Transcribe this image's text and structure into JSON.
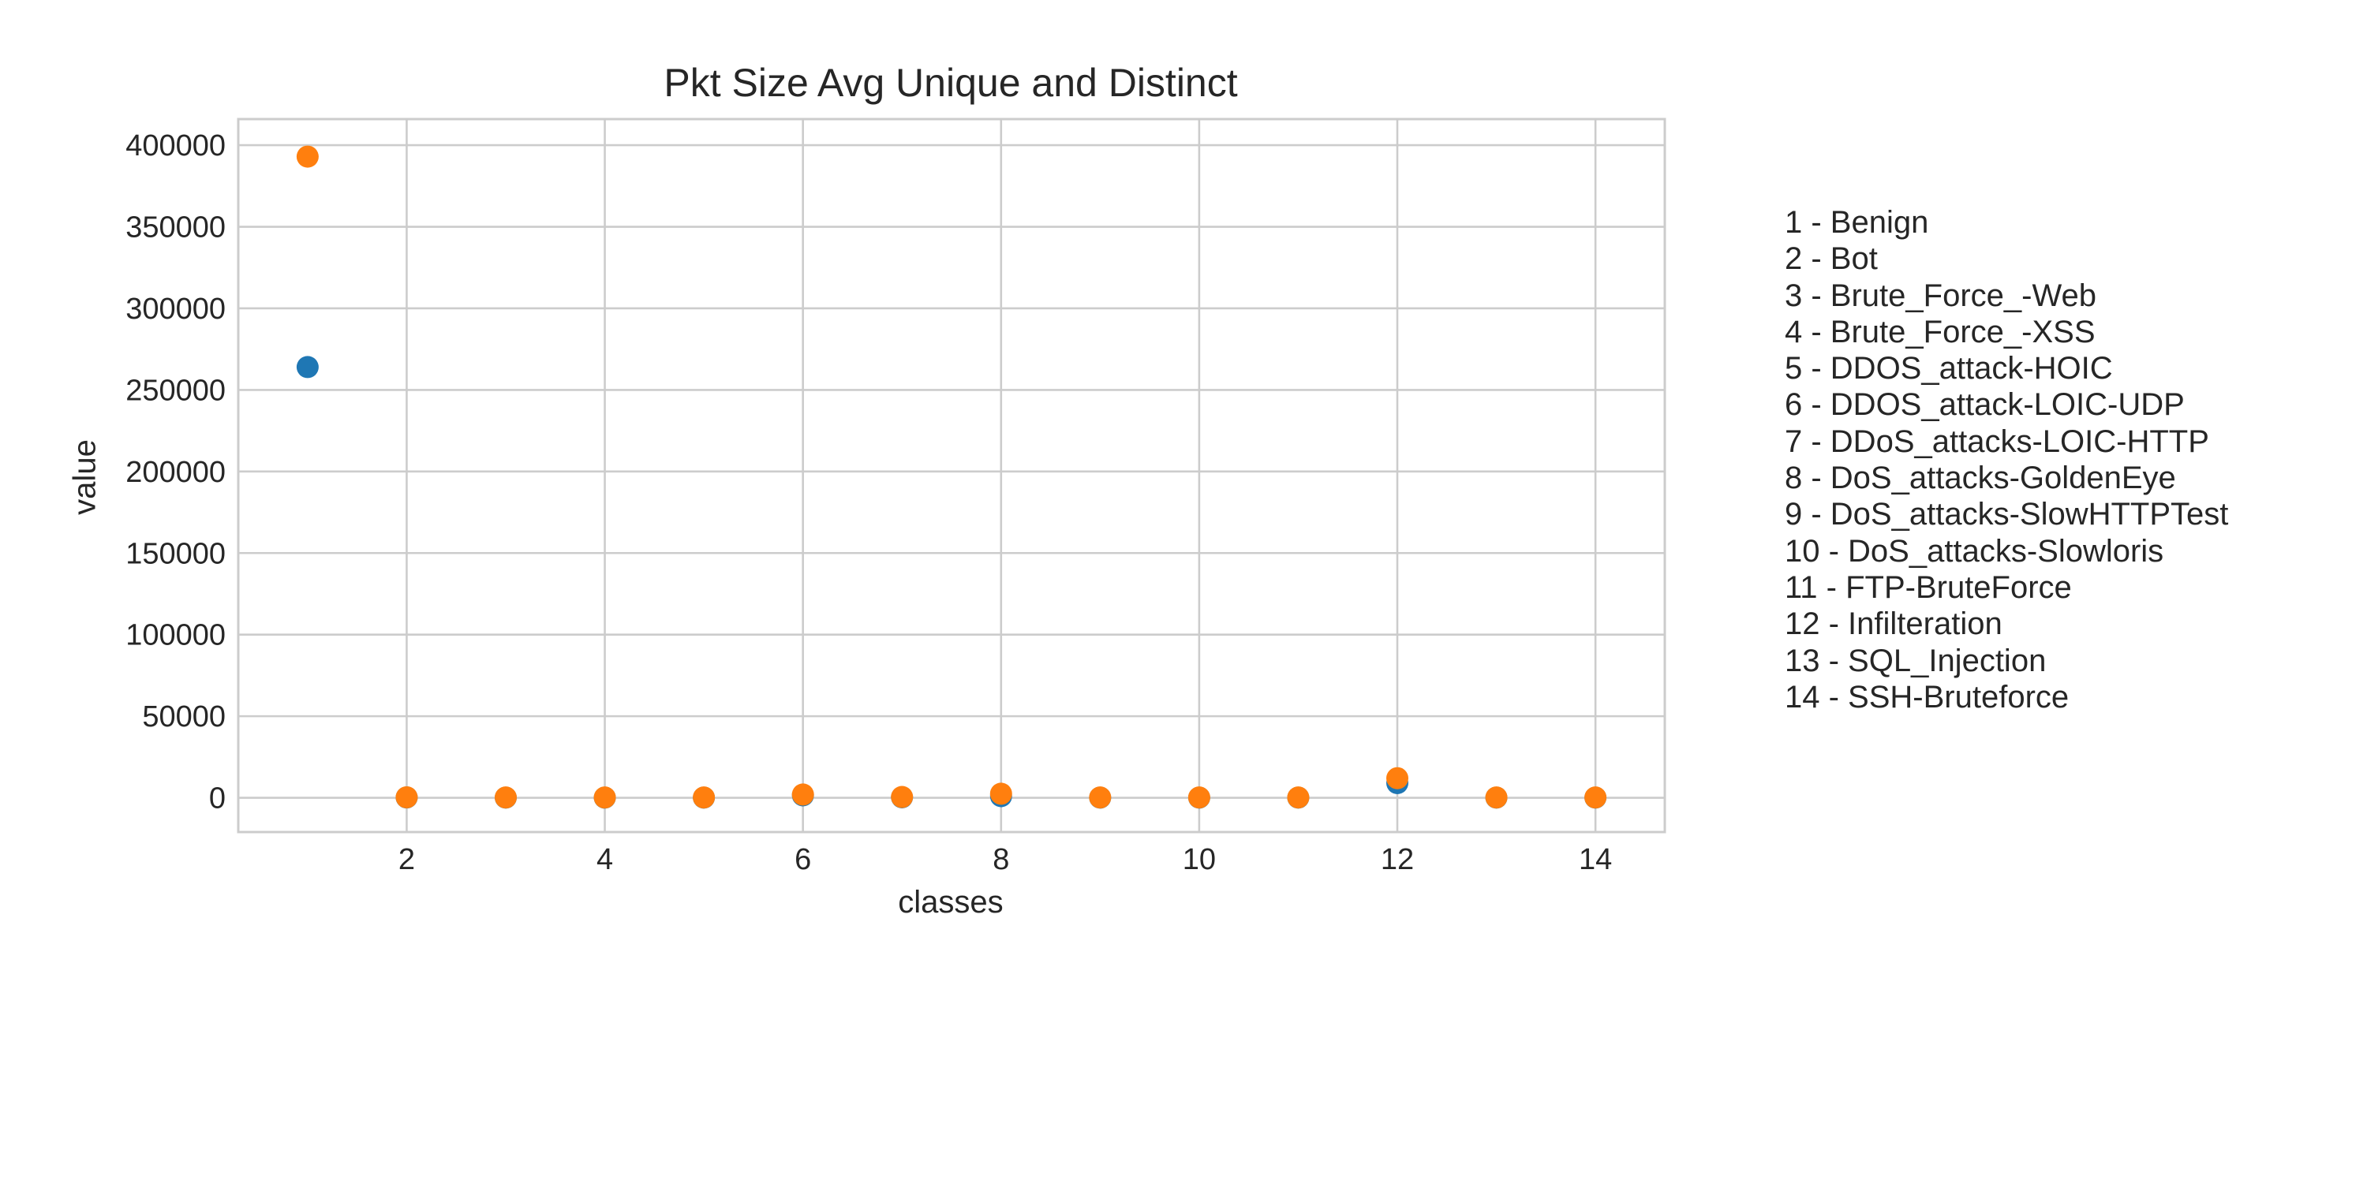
{
  "chart_data": {
    "type": "scatter",
    "title": "Pkt Size Avg Unique and Distinct",
    "xlabel": "classes",
    "ylabel": "value",
    "xlim": [
      0.3,
      14.7
    ],
    "ylim": [
      -21000,
      416000
    ],
    "x_ticks": [
      2,
      4,
      6,
      8,
      10,
      12,
      14
    ],
    "y_ticks": [
      0,
      50000,
      100000,
      150000,
      200000,
      250000,
      300000,
      350000,
      400000
    ],
    "grid": true,
    "series": [
      {
        "color": "#1f77b4",
        "x": [
          1,
          2,
          3,
          4,
          5,
          6,
          7,
          8,
          9,
          10,
          11,
          12,
          13,
          14
        ],
        "y": [
          264000,
          200,
          100,
          100,
          100,
          1500,
          300,
          1000,
          100,
          100,
          100,
          9000,
          100,
          100
        ]
      },
      {
        "color": "#ff7f0e",
        "x": [
          1,
          2,
          3,
          4,
          5,
          6,
          7,
          8,
          9,
          10,
          11,
          12,
          13,
          14
        ],
        "y": [
          393000,
          300,
          200,
          200,
          200,
          2000,
          500,
          2500,
          200,
          200,
          200,
          12000,
          200,
          200
        ]
      }
    ],
    "legend_placement": "right, outside plot",
    "class_legend": [
      "1 - Benign",
      "2 - Bot",
      "3 - Brute_Force_-Web",
      "4 - Brute_Force_-XSS",
      "5 - DDOS_attack-HOIC",
      "6 - DDOS_attack-LOIC-UDP",
      "7 - DDoS_attacks-LOIC-HTTP",
      "8 - DoS_attacks-GoldenEye",
      "9 - DoS_attacks-SlowHTTPTest",
      "10 - DoS_attacks-Slowloris",
      "11 - FTP-BruteForce",
      "12 - Infilteration",
      "13 - SQL_Injection",
      "14 - SSH-Bruteforce"
    ]
  }
}
